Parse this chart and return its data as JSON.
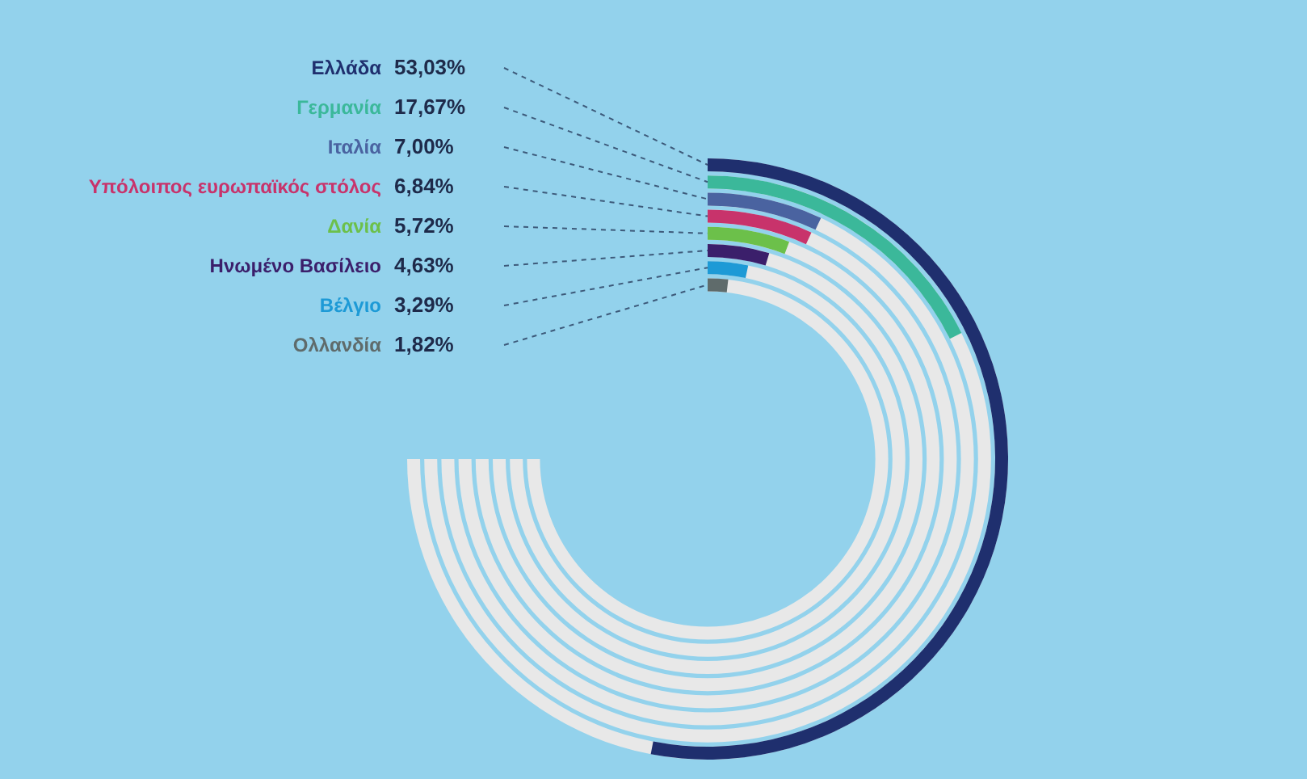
{
  "chart_data": {
    "type": "other",
    "categories": [
      "Ελλάδα",
      "Γερμανία",
      "Ιταλία",
      "Υπόλοιπος ευρωπαϊκός στόλος",
      "Δανία",
      "Ηνωμένο Βασίλειο",
      "Βέλγιο",
      "Ολλανδία"
    ],
    "values": [
      53.03,
      17.67,
      7.0,
      6.84,
      5.72,
      4.63,
      3.29,
      1.82
    ],
    "value_labels": [
      "53,03%",
      "17,67%",
      "7,00%",
      "6,84%",
      "5,72%",
      "4,63%",
      "3,29%",
      "1,82%"
    ],
    "colors": [
      "#1f2f6e",
      "#3bb89a",
      "#4a63a0",
      "#c8336b",
      "#6cc04a",
      "#3b1f6b",
      "#1d9ad6",
      "#5f6b6b"
    ]
  }
}
